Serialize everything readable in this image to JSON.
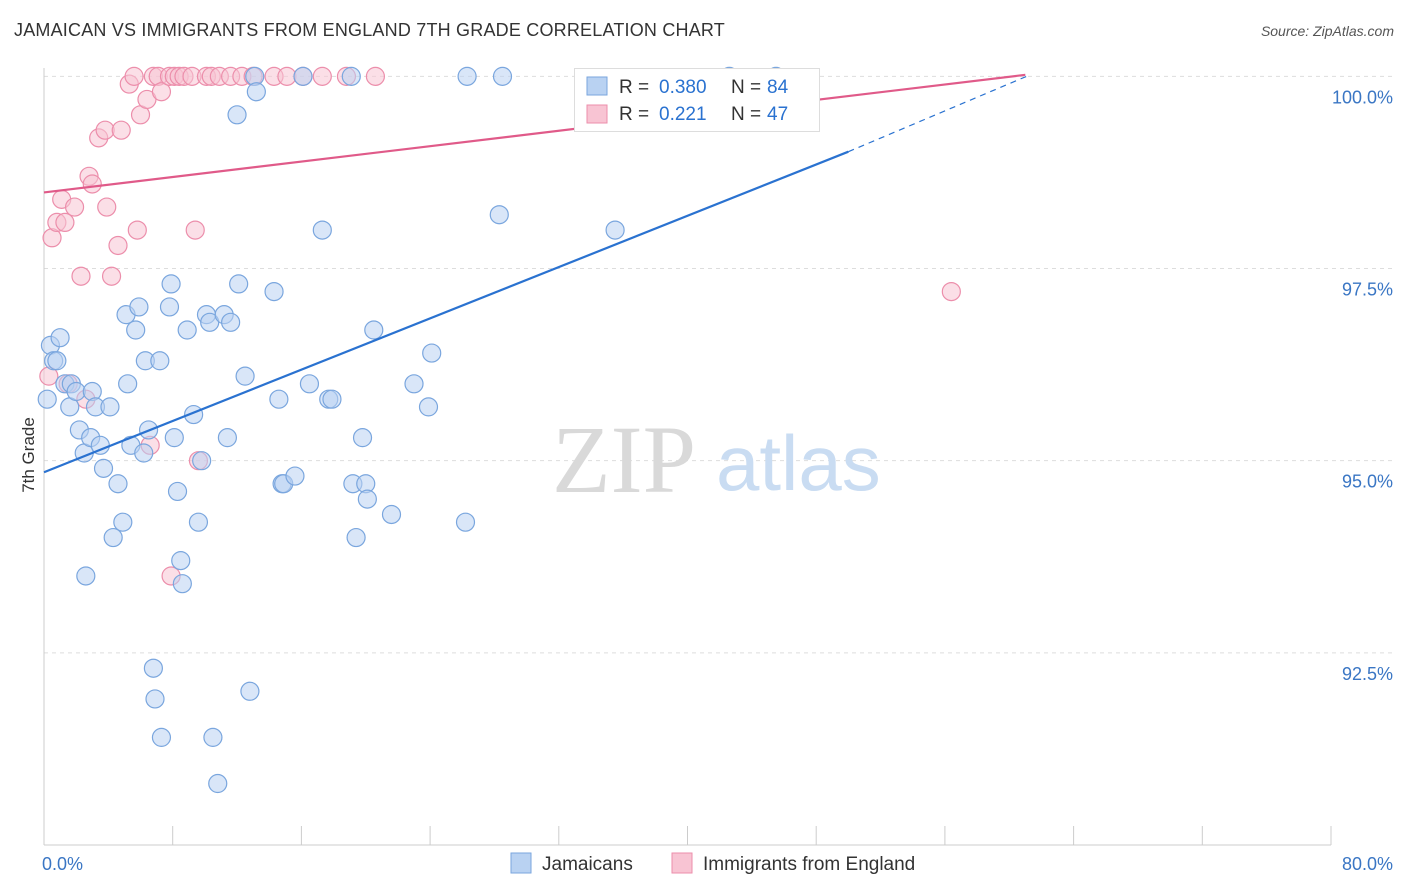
{
  "title": "JAMAICAN VS IMMIGRANTS FROM ENGLAND 7TH GRADE CORRELATION CHART",
  "source": "Source: ZipAtlas.com",
  "watermark": {
    "zip": "ZIP",
    "atlas": "atlas"
  },
  "colors": {
    "blue": "#2a72d0",
    "blue_fill": "#b9d2f2",
    "blue_stroke": "#7aa6de",
    "pink": "#e05a89",
    "pink_fill": "#f8c4d3",
    "pink_stroke": "#ec8eab",
    "grid": "#dddddd",
    "axis_text": "#3a76c4",
    "text": "#333333"
  },
  "legend_top": {
    "rows": [
      {
        "r_label": "R =",
        "r_value": "0.380",
        "n_label": "N =",
        "n_value": "84"
      },
      {
        "r_label": "R =",
        "r_value": "0.221",
        "n_label": "N =",
        "n_value": "47"
      }
    ]
  },
  "legend_bottom": {
    "series1": "Jamaicans",
    "series2": "Immigrants from England"
  },
  "chart_data": {
    "type": "scatter",
    "title": "JAMAICAN VS IMMIGRANTS FROM ENGLAND 7TH GRADE CORRELATION CHART",
    "xlabel": "",
    "ylabel": "7th Grade",
    "xlim": [
      0,
      80
    ],
    "ylim": [
      90.0,
      100.2
    ],
    "x_tick_labels": [
      "0.0%",
      "80.0%"
    ],
    "y_ticks": [
      92.5,
      95.0,
      97.5,
      100.0
    ],
    "y_tick_labels": [
      "92.5%",
      "95.0%",
      "97.5%",
      "100.0%"
    ],
    "grid": true,
    "series": [
      {
        "name": "Jamaicans",
        "color": "#2a72d0",
        "r": 0.38,
        "n": 84,
        "trend": {
          "x0": 0,
          "y0": 94.85,
          "x1": 50,
          "y1": 99.02,
          "dash_to_x": 61.3,
          "dash_to_y": 100.02
        },
        "points": [
          [
            0.2,
            95.8
          ],
          [
            0.4,
            96.5
          ],
          [
            0.6,
            96.3
          ],
          [
            0.8,
            96.3
          ],
          [
            1.0,
            96.6
          ],
          [
            1.3,
            96.0
          ],
          [
            1.6,
            95.7
          ],
          [
            1.7,
            96.0
          ],
          [
            2.0,
            95.9
          ],
          [
            2.2,
            95.4
          ],
          [
            2.5,
            95.1
          ],
          [
            2.6,
            93.5
          ],
          [
            2.9,
            95.3
          ],
          [
            3.0,
            95.9
          ],
          [
            3.2,
            95.7
          ],
          [
            3.5,
            95.2
          ],
          [
            3.7,
            94.9
          ],
          [
            4.1,
            95.7
          ],
          [
            4.3,
            94.0
          ],
          [
            4.6,
            94.7
          ],
          [
            4.9,
            94.2
          ],
          [
            5.1,
            96.9
          ],
          [
            5.2,
            96.0
          ],
          [
            5.4,
            95.2
          ],
          [
            5.7,
            96.7
          ],
          [
            5.9,
            97.0
          ],
          [
            6.2,
            95.1
          ],
          [
            6.3,
            96.3
          ],
          [
            6.5,
            95.4
          ],
          [
            6.8,
            92.3
          ],
          [
            6.9,
            91.9
          ],
          [
            7.2,
            96.3
          ],
          [
            7.3,
            91.4
          ],
          [
            7.8,
            97.0
          ],
          [
            7.9,
            97.3
          ],
          [
            8.1,
            95.3
          ],
          [
            8.3,
            94.6
          ],
          [
            8.5,
            93.7
          ],
          [
            8.6,
            93.4
          ],
          [
            8.9,
            96.7
          ],
          [
            9.3,
            95.6
          ],
          [
            9.6,
            94.2
          ],
          [
            9.8,
            95.0
          ],
          [
            10.1,
            96.9
          ],
          [
            10.3,
            96.8
          ],
          [
            10.5,
            91.4
          ],
          [
            10.8,
            90.8
          ],
          [
            11.2,
            96.9
          ],
          [
            11.4,
            95.3
          ],
          [
            11.6,
            96.8
          ],
          [
            12.0,
            99.5
          ],
          [
            12.1,
            97.3
          ],
          [
            12.5,
            96.1
          ],
          [
            12.8,
            92.0
          ],
          [
            13.1,
            100.0
          ],
          [
            13.2,
            99.8
          ],
          [
            14.3,
            97.2
          ],
          [
            14.6,
            95.8
          ],
          [
            14.8,
            94.7
          ],
          [
            14.9,
            94.7
          ],
          [
            15.6,
            94.8
          ],
          [
            16.1,
            100.0
          ],
          [
            16.5,
            96.0
          ],
          [
            17.3,
            98.0
          ],
          [
            17.7,
            95.8
          ],
          [
            17.9,
            95.8
          ],
          [
            19.1,
            100.0
          ],
          [
            19.2,
            94.7
          ],
          [
            19.4,
            94.0
          ],
          [
            19.8,
            95.3
          ],
          [
            20.0,
            94.7
          ],
          [
            20.1,
            94.5
          ],
          [
            20.5,
            96.7
          ],
          [
            21.6,
            94.3
          ],
          [
            23.0,
            96.0
          ],
          [
            23.9,
            95.7
          ],
          [
            24.1,
            96.4
          ],
          [
            26.2,
            94.2
          ],
          [
            26.3,
            100.0
          ],
          [
            28.3,
            98.2
          ],
          [
            28.5,
            100.0
          ],
          [
            35.5,
            98.0
          ],
          [
            42.6,
            100.0
          ],
          [
            45.5,
            100.0
          ]
        ]
      },
      {
        "name": "Immigrants from England",
        "color": "#e05a89",
        "r": 0.221,
        "n": 47,
        "trend": {
          "x0": 0,
          "y0": 98.49,
          "x1": 61.0,
          "y1": 100.02
        },
        "points": [
          [
            0.3,
            96.1
          ],
          [
            0.5,
            97.9
          ],
          [
            0.8,
            98.1
          ],
          [
            1.1,
            98.4
          ],
          [
            1.3,
            98.1
          ],
          [
            1.5,
            96.0
          ],
          [
            1.9,
            98.3
          ],
          [
            2.3,
            97.4
          ],
          [
            2.6,
            95.8
          ],
          [
            2.8,
            98.7
          ],
          [
            3.0,
            98.6
          ],
          [
            3.4,
            99.2
          ],
          [
            3.8,
            99.3
          ],
          [
            3.9,
            98.3
          ],
          [
            4.2,
            97.4
          ],
          [
            4.6,
            97.8
          ],
          [
            4.8,
            99.3
          ],
          [
            5.3,
            99.9
          ],
          [
            5.6,
            100.0
          ],
          [
            5.8,
            98.0
          ],
          [
            6.0,
            99.5
          ],
          [
            6.4,
            99.7
          ],
          [
            6.6,
            95.2
          ],
          [
            6.8,
            100.0
          ],
          [
            7.1,
            100.0
          ],
          [
            7.3,
            99.8
          ],
          [
            7.8,
            100.0
          ],
          [
            7.9,
            93.5
          ],
          [
            8.1,
            100.0
          ],
          [
            8.4,
            100.0
          ],
          [
            8.7,
            100.0
          ],
          [
            9.2,
            100.0
          ],
          [
            9.4,
            98.0
          ],
          [
            9.6,
            95.0
          ],
          [
            10.1,
            100.0
          ],
          [
            10.4,
            100.0
          ],
          [
            10.9,
            100.0
          ],
          [
            11.6,
            100.0
          ],
          [
            12.3,
            100.0
          ],
          [
            13.0,
            100.0
          ],
          [
            14.3,
            100.0
          ],
          [
            15.1,
            100.0
          ],
          [
            16.1,
            100.0
          ],
          [
            17.3,
            100.0
          ],
          [
            18.8,
            100.0
          ],
          [
            20.6,
            100.0
          ],
          [
            56.4,
            97.2
          ]
        ]
      }
    ]
  }
}
